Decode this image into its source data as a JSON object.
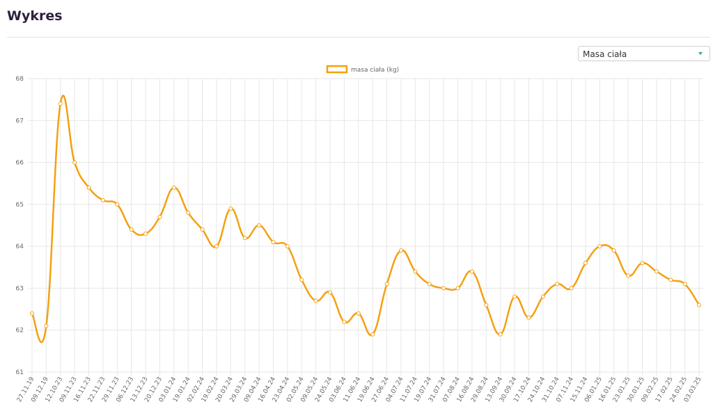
{
  "header": {
    "title": "Wykres"
  },
  "controls": {
    "select": "Masa ciała"
  },
  "chart_data": {
    "type": "line",
    "categories": [
      "27.11.19",
      "09.12.19",
      "12.10.23",
      "09.11.23",
      "16.11.23",
      "22.11.23",
      "29.11.23",
      "06.12.23",
      "13.12.23",
      "20.12.23",
      "03.01.24",
      "19.01.24",
      "02.02.24",
      "19.02.24",
      "20.03.24",
      "29.03.24",
      "09.04.24",
      "16.04.24",
      "23.04.24",
      "02.05.24",
      "09.05.24",
      "24.05.24",
      "03.06.24",
      "11.06.24",
      "19.06.24",
      "27.06.24",
      "04.07.24",
      "11.07.24",
      "19.07.24",
      "31.07.24",
      "07.08.24",
      "16.08.24",
      "29.08.24",
      "13.09.24",
      "30.09.24",
      "17.10.24",
      "24.10.24",
      "31.10.24",
      "07.11.24",
      "15.11.24",
      "06.01.25",
      "16.01.25",
      "23.01.25",
      "30.01.25",
      "09.02.25",
      "17.02.25",
      "24.02.25",
      "03.03.25"
    ],
    "series": [
      {
        "name": "masa ciała (kg)",
        "color": "#f5a00f",
        "values": [
          62.4,
          62.1,
          67.4,
          66.0,
          65.4,
          65.1,
          65.0,
          64.4,
          64.3,
          64.7,
          65.4,
          64.8,
          64.4,
          64.0,
          64.9,
          64.2,
          64.5,
          64.1,
          64.0,
          63.2,
          62.7,
          62.9,
          62.2,
          62.4,
          61.9,
          63.1,
          63.9,
          63.4,
          63.1,
          63.0,
          63.0,
          63.4,
          62.6,
          61.9,
          62.8,
          62.3,
          62.8,
          63.1,
          63.0,
          63.6,
          64.0,
          63.9,
          63.3,
          63.6,
          63.4,
          63.2,
          63.1,
          62.6
        ]
      }
    ],
    "ylim": [
      61,
      68
    ],
    "yticks": [
      61,
      62,
      63,
      64,
      65,
      66,
      67,
      68
    ],
    "grid": true
  }
}
